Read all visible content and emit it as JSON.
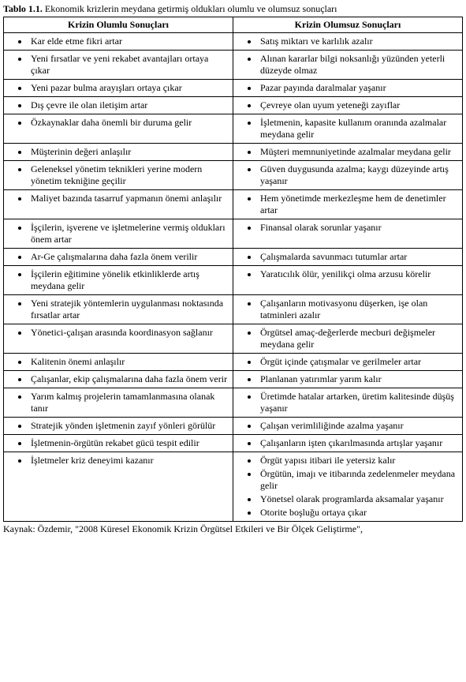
{
  "caption_bold": "Tablo 1.1.",
  "caption_rest": " Ekonomik krizlerin meydana getirmiş oldukları olumlu ve olumsuz sonuçları",
  "headers": {
    "left": "Krizin Olumlu Sonuçları",
    "right": "Krizin Olumsuz Sonuçları"
  },
  "rows": [
    {
      "left": [
        "Kar elde etme fikri artar"
      ],
      "right": [
        "Satış miktarı ve karlılık azalır"
      ]
    },
    {
      "left": [
        "Yeni fırsatlar ve yeni rekabet avantajları ortaya çıkar"
      ],
      "right": [
        "Alınan kararlar bilgi noksanlığı yüzünden yeterli düzeyde olmaz"
      ]
    },
    {
      "left": [
        "Yeni pazar bulma arayışları ortaya çıkar"
      ],
      "right": [
        "Pazar payında daralmalar yaşanır"
      ]
    },
    {
      "left": [
        "Dış çevre ile olan iletişim artar"
      ],
      "right": [
        "Çevreye olan uyum yeteneği zayıflar"
      ]
    },
    {
      "left": [
        "Özkaynaklar daha önemli bir duruma gelir"
      ],
      "right": [
        "İşletmenin, kapasite kullanım oranında azalmalar meydana gelir"
      ]
    },
    {
      "left": [
        "Müşterinin değeri anlaşılır"
      ],
      "right": [
        "Müşteri memnuniyetinde azalmalar meydana gelir"
      ]
    },
    {
      "left": [
        "Geleneksel yönetim teknikleri yerine modern yönetim tekniğine geçilir"
      ],
      "right": [
        "Güven duygusunda azalma; kaygı düzeyinde artış yaşanır"
      ]
    },
    {
      "left": [
        "Maliyet bazında tasarruf yapmanın önemi anlaşılır"
      ],
      "right": [
        "Hem yönetimde merkezleşme hem de denetimler artar"
      ]
    },
    {
      "left": [
        "İşçilerin, işverene ve işletmelerine vermiş oldukları önem artar"
      ],
      "right": [
        "Finansal olarak sorunlar yaşanır"
      ]
    },
    {
      "left": [
        "Ar-Ge çalışmalarına daha fazla önem verilir"
      ],
      "right": [
        "Çalışmalarda savunmacı tutumlar artar"
      ]
    },
    {
      "left": [
        "İşçilerin eğitimine yönelik etkinliklerde artış meydana gelir"
      ],
      "right": [
        "Yaratıcılık ölür, yenilikçi olma arzusu körelir"
      ]
    },
    {
      "left": [
        "Yeni stratejik yöntemlerin uygulanması noktasında fırsatlar artar"
      ],
      "right": [
        "Çalışanların motivasyonu düşerken, işe olan tatminleri azalır"
      ]
    },
    {
      "left": [
        "Yönetici-çalışan arasında koordinasyon sağlanır"
      ],
      "right": [
        "Örgütsel amaç-değerlerde mecburi değişmeler meydana gelir"
      ]
    },
    {
      "left": [
        "Kalitenin önemi anlaşılır"
      ],
      "right": [
        "Örgüt içinde çatışmalar ve gerilmeler artar"
      ]
    },
    {
      "left": [
        "Çalışanlar, ekip çalışmalarına daha fazla önem verir"
      ],
      "right": [
        "Planlanan yatırımlar yarım kalır"
      ]
    },
    {
      "left": [
        "Yarım kalmış projelerin tamamlanmasına olanak tanır"
      ],
      "right": [
        "Üretimde hatalar artarken, üretim kalitesinde düşüş yaşanır"
      ]
    },
    {
      "left": [
        "Stratejik yönden işletmenin zayıf yönleri görülür"
      ],
      "right": [
        "Çalışan verimliliğinde azalma yaşanır"
      ]
    },
    {
      "left": [
        "İşletmenin-örgütün rekabet gücü tespit edilir"
      ],
      "right": [
        "Çalışanların işten çıkarılmasında artışlar yaşanır"
      ]
    },
    {
      "left": [
        "İşletmeler kriz deneyimi kazanır"
      ],
      "right": [
        "Örgüt yapısı itibari ile yetersiz kalır",
        "Örgütün, imajı ve itibarında zedelenmeler meydana gelir",
        "Yönetsel olarak programlarda aksamalar yaşanır",
        "Otorite boşluğu ortaya çıkar"
      ]
    }
  ],
  "source": "Kaynak: Özdemir, \"2008 Küresel Ekonomik Krizin Örgütsel Etkileri ve Bir Ölçek Geliştirme\","
}
